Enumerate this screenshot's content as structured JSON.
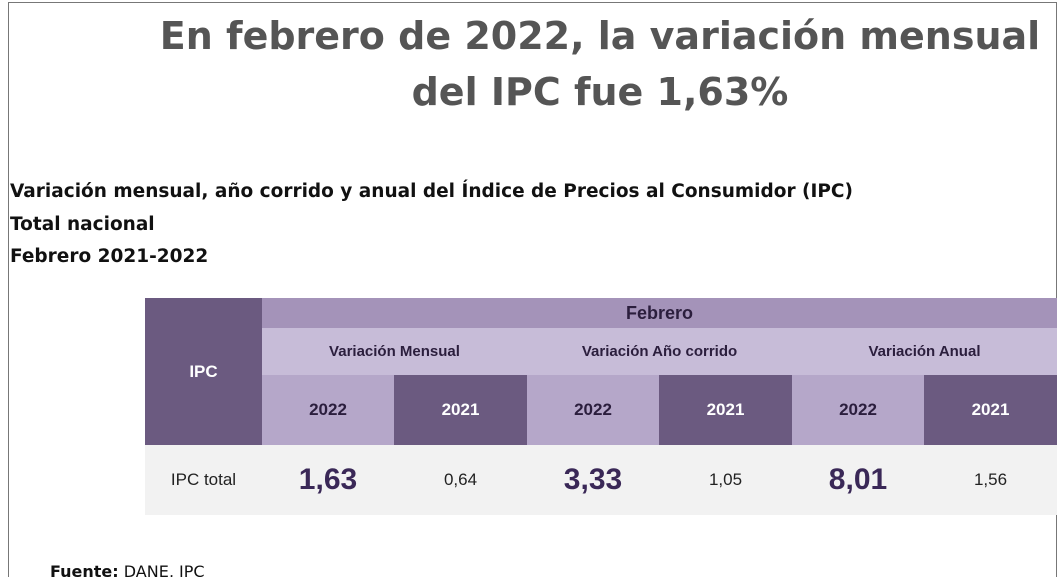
{
  "header": {
    "title_lines": [
      "En febrero de 2022, la variación mensual",
      "del IPC fue 1,63%"
    ],
    "subtitle_lines": [
      "Variación mensual, año corrido y anual del Índice de Precios al Consumidor (IPC)",
      "Total nacional",
      "Febrero 2021-2022"
    ]
  },
  "table": {
    "row_header": "IPC",
    "group": "Febrero",
    "subgroups": [
      "Variación Mensual",
      "Variación Año corrido",
      "Variación Anual"
    ],
    "years": [
      "2022",
      "2021",
      "2022",
      "2021",
      "2022",
      "2021"
    ],
    "rows": [
      [
        "IPC total",
        "1,63",
        "0,64",
        "3,33",
        "1,05",
        "8,01",
        "1,56"
      ]
    ]
  },
  "source": {
    "label": "Fuente:",
    "text": "DANE, IPC"
  }
}
